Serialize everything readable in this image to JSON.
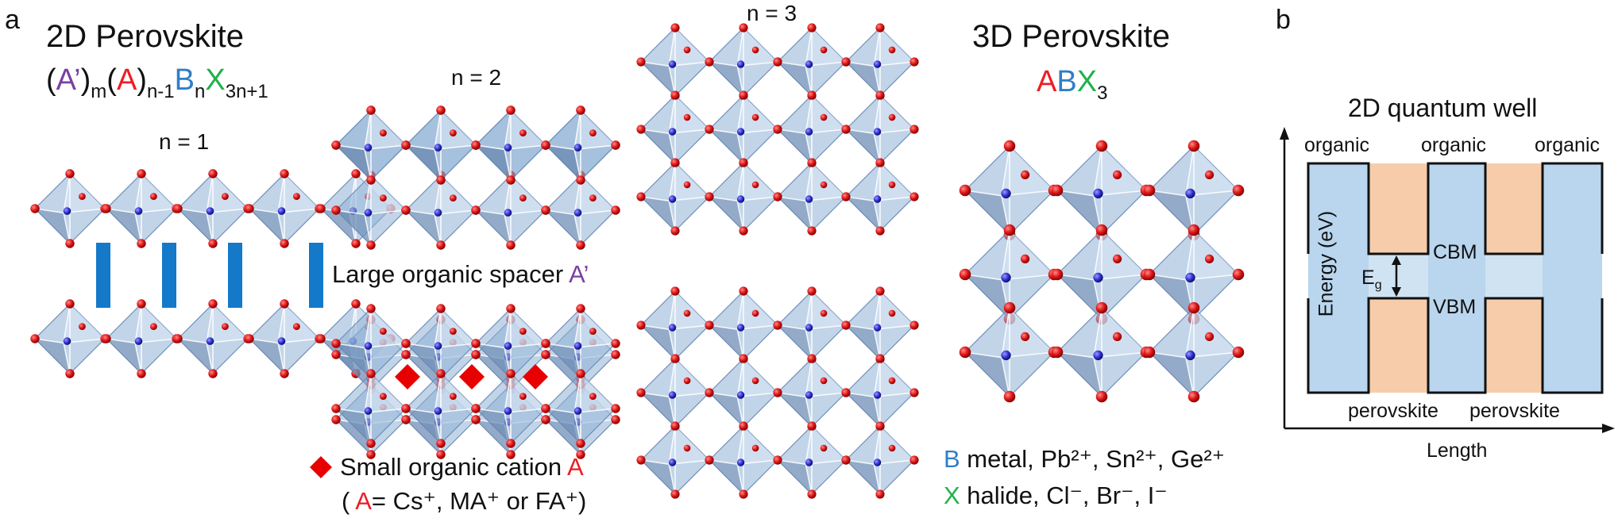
{
  "panel_a": {
    "letter": "a",
    "left_title": "2D Perovskite",
    "formula": [
      {
        "text": "(",
        "color": "#111111",
        "sub": ""
      },
      {
        "text": "A’",
        "color": "#7b3fa0",
        "sub": ""
      },
      {
        "text": ")",
        "color": "#111111",
        "sub": "m"
      },
      {
        "text": "(",
        "color": "#111111",
        "sub": ""
      },
      {
        "text": "A",
        "color": "#ee1c25",
        "sub": ""
      },
      {
        "text": ")",
        "color": "#111111",
        "sub": "n-1"
      },
      {
        "text": "B",
        "color": "#2e7ec8",
        "sub": "n"
      },
      {
        "text": "X",
        "color": "#1fb24b",
        "sub": "3n+1"
      }
    ],
    "n1_label": "n = 1",
    "n2_label": "n = 2",
    "n3_label": "n = 3",
    "spacer_label": "Large organic spacer ",
    "spacer_symbol": "A’",
    "cation_label": "Small organic cation ",
    "cation_symbol": "A",
    "cation_line2_open": "( ",
    "cation_line2_A": "A",
    "cation_line2_rest": "= Cs⁺, MA⁺ or FA⁺)",
    "right_title": "3D Perovskite",
    "right_formula": [
      {
        "text": "A",
        "color": "#ee1c25",
        "sub": ""
      },
      {
        "text": "B",
        "color": "#2e7ec8",
        "sub": ""
      },
      {
        "text": "X",
        "color": "#1fb24b",
        "sub": "3"
      }
    ],
    "legend_B_symbol": "B",
    "legend_B_text": " metal, Pb²⁺, Sn²⁺, Ge²⁺",
    "legend_X_symbol": "X",
    "legend_X_text": " halide, Cl⁻, Br⁻, I⁻"
  },
  "panel_b": {
    "letter": "b",
    "title": "2D quantum well",
    "organic_labels": [
      "organic",
      "organic",
      "organic"
    ],
    "perovskite_labels": [
      "perovskite",
      "perovskite"
    ],
    "cbm": "CBM",
    "vbm": "VBM",
    "eg": "E",
    "eg_sub": "g",
    "y_axis": "Energy (eV)",
    "x_axis": "Length",
    "colors": {
      "organic": "#b9d6ee",
      "perovskite": "#f6ccab",
      "band": "#cfe3f2"
    }
  },
  "colors": {
    "octahedron_face": "#8fb0d6",
    "octahedron_edge": "#ffffff",
    "halide_atom": "#e01a1a",
    "metal_atom": "#2f2fd0",
    "spacer_bar": "#1479c8",
    "cation_diamond": "#e80000"
  }
}
